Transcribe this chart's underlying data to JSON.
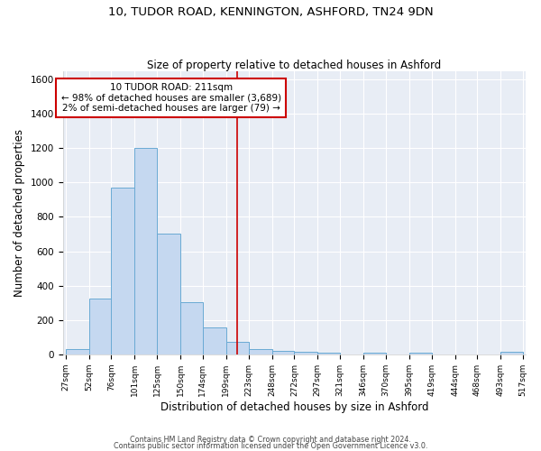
{
  "title_line1": "10, TUDOR ROAD, KENNINGTON, ASHFORD, TN24 9DN",
  "title_line2": "Size of property relative to detached houses in Ashford",
  "xlabel": "Distribution of detached houses by size in Ashford",
  "ylabel": "Number of detached properties",
  "bar_color": "#c5d8f0",
  "bar_edge_color": "#6aaad4",
  "background_color": "#e8edf5",
  "grid_color": "#ffffff",
  "annotation_box_color": "#cc0000",
  "vline_color": "#cc0000",
  "vline_x": 211,
  "annotation_line1": "10 TUDOR ROAD: 211sqm",
  "annotation_line2": "← 98% of detached houses are smaller (3,689)",
  "annotation_line3": "2% of semi-detached houses are larger (79) →",
  "footer_line1": "Contains HM Land Registry data © Crown copyright and database right 2024.",
  "footer_line2": "Contains public sector information licensed under the Open Government Licence v3.0.",
  "bin_edges": [
    27,
    52,
    76,
    101,
    125,
    150,
    174,
    199,
    223,
    248,
    272,
    297,
    321,
    346,
    370,
    395,
    419,
    444,
    468,
    493,
    517
  ],
  "bin_heights": [
    30,
    325,
    970,
    1200,
    700,
    305,
    155,
    75,
    30,
    20,
    15,
    10,
    0,
    10,
    0,
    10,
    0,
    0,
    0,
    15
  ],
  "ylim": [
    0,
    1650
  ],
  "yticks": [
    0,
    200,
    400,
    600,
    800,
    1000,
    1200,
    1400,
    1600
  ]
}
